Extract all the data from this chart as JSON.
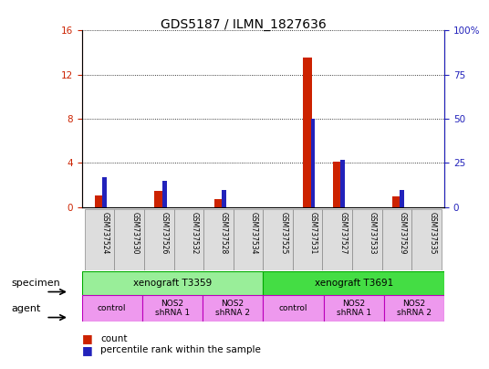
{
  "title": "GDS5187 / ILMN_1827636",
  "samples": [
    "GSM737524",
    "GSM737530",
    "GSM737526",
    "GSM737532",
    "GSM737528",
    "GSM737534",
    "GSM737525",
    "GSM737531",
    "GSM737527",
    "GSM737533",
    "GSM737529",
    "GSM737535"
  ],
  "count_values": [
    1.1,
    0.0,
    1.5,
    0.0,
    0.7,
    0.0,
    0.0,
    13.5,
    4.1,
    0.0,
    1.0,
    0.0
  ],
  "percentile_values": [
    17,
    0,
    15,
    0,
    10,
    0,
    0,
    50,
    27,
    0,
    10,
    0
  ],
  "left_ylim": [
    0,
    16
  ],
  "right_ylim": [
    0,
    100
  ],
  "left_yticks": [
    0,
    4,
    8,
    12,
    16
  ],
  "right_yticks": [
    0,
    25,
    50,
    75,
    100
  ],
  "right_yticklabels": [
    "0",
    "25",
    "50",
    "75",
    "100%"
  ],
  "count_color": "#cc2200",
  "percentile_color": "#2222bb",
  "specimen_groups": [
    {
      "label": "xenograft T3359",
      "start": 0,
      "end": 5,
      "color": "#99ee99"
    },
    {
      "label": "xenograft T3691",
      "start": 6,
      "end": 11,
      "color": "#44dd44"
    }
  ],
  "agent_groups": [
    {
      "label": "control",
      "start": 0,
      "end": 1,
      "color": "#ee99ee"
    },
    {
      "label": "NOS2\nshRNA 1",
      "start": 2,
      "end": 3,
      "color": "#ee99ee"
    },
    {
      "label": "NOS2\nshRNA 2",
      "start": 4,
      "end": 5,
      "color": "#ee99ee"
    },
    {
      "label": "control",
      "start": 6,
      "end": 7,
      "color": "#ee99ee"
    },
    {
      "label": "NOS2\nshRNA 1",
      "start": 8,
      "end": 9,
      "color": "#ee99ee"
    },
    {
      "label": "NOS2\nshRNA 2",
      "start": 10,
      "end": 11,
      "color": "#ee99ee"
    }
  ],
  "specimen_label": "specimen",
  "agent_label": "agent",
  "bg_color": "#ffffff"
}
